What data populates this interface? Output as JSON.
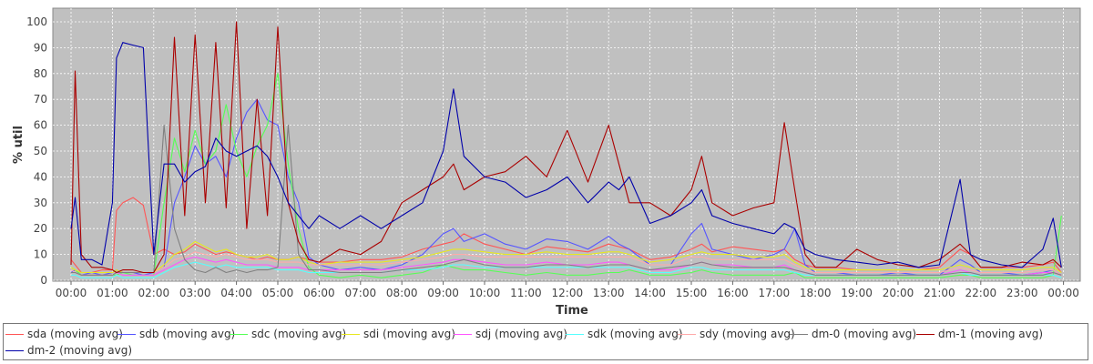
{
  "chart_data": {
    "type": "line",
    "title": "",
    "xlabel": "Time",
    "ylabel": "% util",
    "ylim": [
      0,
      100
    ],
    "y_ticks": [
      "0",
      "10",
      "20",
      "30",
      "40",
      "50",
      "60",
      "70",
      "80",
      "90",
      "100"
    ],
    "x_ticks": [
      "00:00",
      "01:00",
      "02:00",
      "03:00",
      "04:00",
      "05:00",
      "06:00",
      "07:00",
      "08:00",
      "09:00",
      "10:00",
      "11:00",
      "12:00",
      "13:00",
      "14:00",
      "15:00",
      "16:00",
      "17:00",
      "18:00",
      "19:00",
      "20:00",
      "21:00",
      "22:00",
      "23:00",
      "00:00"
    ],
    "grid": true,
    "legend_position": "bottom",
    "plot_background": "#c0c0c0",
    "x_hours": [
      0.0,
      0.1,
      0.25,
      0.5,
      0.75,
      1.0,
      1.1,
      1.25,
      1.5,
      1.75,
      2.0,
      2.25,
      2.5,
      2.75,
      3.0,
      3.25,
      3.5,
      3.75,
      4.0,
      4.25,
      4.5,
      4.75,
      5.0,
      5.25,
      5.5,
      5.75,
      6.0,
      6.5,
      7.0,
      7.5,
      8.0,
      8.5,
      9.0,
      9.25,
      9.5,
      10.0,
      10.5,
      11.0,
      11.5,
      12.0,
      12.5,
      13.0,
      13.25,
      13.5,
      14.0,
      14.5,
      15.0,
      15.25,
      15.5,
      16.0,
      16.5,
      17.0,
      17.25,
      17.5,
      17.75,
      18.0,
      18.5,
      19.0,
      19.5,
      20.0,
      20.5,
      21.0,
      21.5,
      21.75,
      22.0,
      22.5,
      23.0,
      23.5,
      23.75,
      23.95
    ],
    "series": [
      {
        "name": "sda (moving avg)",
        "color": "#ff5555",
        "values": [
          8,
          6,
          3,
          3,
          4,
          4,
          27,
          30,
          32,
          29,
          10,
          12,
          10,
          11,
          14,
          12,
          10,
          11,
          10,
          9,
          8,
          9,
          8,
          8,
          9,
          8,
          7,
          7,
          8,
          8,
          9,
          12,
          14,
          15,
          18,
          14,
          12,
          10,
          13,
          12,
          11,
          14,
          13,
          12,
          8,
          9,
          12,
          14,
          11,
          13,
          12,
          11,
          12,
          8,
          6,
          5,
          5,
          4,
          4,
          4,
          4,
          5,
          12,
          10,
          5,
          5,
          5,
          6,
          7,
          3
        ]
      },
      {
        "name": "sdb (moving avg)",
        "color": "#5555ff",
        "values": [
          3,
          4,
          2,
          3,
          2,
          3,
          4,
          3,
          3,
          2,
          3,
          5,
          30,
          40,
          52,
          45,
          48,
          40,
          55,
          65,
          70,
          62,
          60,
          40,
          30,
          9,
          6,
          4,
          5,
          4,
          6,
          10,
          18,
          20,
          15,
          18,
          14,
          12,
          16,
          15,
          12,
          17,
          14,
          12,
          6,
          6,
          18,
          22,
          12,
          10,
          8,
          10,
          12,
          20,
          6,
          3,
          3,
          2,
          2,
          3,
          2,
          2,
          8,
          6,
          3,
          3,
          2,
          3,
          4,
          2
        ]
      },
      {
        "name": "sdc (moving avg)",
        "color": "#55ff55",
        "values": [
          5,
          4,
          2,
          2,
          2,
          2,
          2,
          3,
          2,
          2,
          2,
          30,
          55,
          42,
          58,
          45,
          50,
          68,
          50,
          40,
          52,
          60,
          80,
          45,
          20,
          5,
          2,
          1,
          2,
          1,
          2,
          3,
          6,
          5,
          4,
          4,
          3,
          2,
          3,
          2,
          2,
          3,
          3,
          4,
          2,
          2,
          3,
          4,
          3,
          2,
          2,
          2,
          2,
          3,
          1,
          1,
          1,
          1,
          1,
          1,
          1,
          1,
          2,
          2,
          1,
          1,
          1,
          1,
          2,
          25
        ]
      },
      {
        "name": "sdi (moving avg)",
        "color": "#e8e820",
        "values": [
          5,
          4,
          3,
          3,
          3,
          3,
          4,
          3,
          3,
          3,
          3,
          6,
          10,
          12,
          15,
          13,
          11,
          12,
          10,
          9,
          9,
          10,
          8,
          8,
          9,
          7,
          6,
          7,
          7,
          7,
          8,
          9,
          11,
          12,
          12,
          11,
          10,
          10,
          11,
          10,
          10,
          11,
          11,
          10,
          7,
          8,
          10,
          11,
          10,
          10,
          9,
          9,
          10,
          7,
          5,
          4,
          4,
          4,
          4,
          4,
          4,
          4,
          6,
          5,
          4,
          4,
          4,
          5,
          5,
          3
        ]
      },
      {
        "name": "sdj (moving avg)",
        "color": "#ff55ff",
        "values": [
          3,
          3,
          2,
          2,
          2,
          2,
          3,
          2,
          2,
          2,
          2,
          4,
          6,
          8,
          9,
          8,
          7,
          8,
          7,
          6,
          6,
          6,
          5,
          5,
          5,
          4,
          4,
          4,
          4,
          4,
          5,
          6,
          7,
          8,
          8,
          7,
          6,
          6,
          7,
          6,
          6,
          7,
          7,
          6,
          4,
          4,
          6,
          7,
          6,
          6,
          5,
          5,
          6,
          4,
          3,
          2,
          2,
          2,
          2,
          2,
          2,
          2,
          4,
          3,
          2,
          2,
          2,
          3,
          3,
          2
        ]
      },
      {
        "name": "sdk (moving avg)",
        "color": "#55ffff",
        "values": [
          2,
          2,
          1,
          1,
          1,
          1,
          2,
          1,
          1,
          1,
          1,
          3,
          5,
          6,
          7,
          6,
          5,
          6,
          5,
          5,
          5,
          5,
          4,
          4,
          4,
          3,
          3,
          3,
          3,
          3,
          4,
          4,
          5,
          6,
          6,
          5,
          5,
          5,
          5,
          5,
          5,
          5,
          5,
          5,
          3,
          3,
          5,
          5,
          4,
          4,
          4,
          4,
          4,
          3,
          2,
          2,
          2,
          2,
          2,
          2,
          2,
          2,
          3,
          2,
          2,
          2,
          2,
          2,
          2,
          1
        ]
      },
      {
        "name": "sdy (moving avg)",
        "color": "#ffaaaa",
        "values": [
          4,
          3,
          2,
          2,
          2,
          2,
          3,
          3,
          3,
          3,
          3,
          5,
          8,
          9,
          11,
          10,
          9,
          10,
          9,
          8,
          8,
          8,
          7,
          7,
          7,
          6,
          6,
          6,
          6,
          6,
          7,
          8,
          9,
          10,
          10,
          9,
          9,
          9,
          9,
          9,
          9,
          9,
          9,
          9,
          6,
          6,
          9,
          9,
          8,
          8,
          8,
          8,
          8,
          6,
          4,
          3,
          3,
          3,
          3,
          3,
          3,
          3,
          5,
          4,
          3,
          3,
          3,
          4,
          4,
          2
        ]
      },
      {
        "name": "dm-0 (moving avg)",
        "color": "#808080",
        "values": [
          3,
          3,
          2,
          2,
          2,
          2,
          3,
          3,
          3,
          3,
          3,
          60,
          20,
          8,
          4,
          3,
          5,
          3,
          4,
          3,
          4,
          4,
          5,
          60,
          10,
          4,
          4,
          3,
          3,
          3,
          4,
          5,
          6,
          7,
          8,
          6,
          5,
          5,
          6,
          6,
          5,
          6,
          6,
          6,
          4,
          5,
          6,
          7,
          6,
          5,
          5,
          5,
          5,
          4,
          3,
          2,
          2,
          2,
          2,
          2,
          2,
          2,
          3,
          3,
          2,
          2,
          2,
          2,
          3,
          2
        ]
      },
      {
        "name": "dm-1 (moving avg)",
        "color": "#aa0000",
        "values": [
          6,
          81,
          10,
          5,
          5,
          4,
          3,
          4,
          4,
          3,
          3,
          10,
          94,
          25,
          95,
          30,
          92,
          28,
          100,
          20,
          70,
          25,
          98,
          30,
          15,
          8,
          7,
          12,
          10,
          15,
          30,
          35,
          40,
          45,
          35,
          40,
          42,
          48,
          40,
          58,
          38,
          60,
          45,
          30,
          30,
          25,
          35,
          48,
          30,
          25,
          28,
          30,
          61,
          35,
          10,
          5,
          5,
          12,
          8,
          6,
          5,
          8,
          14,
          10,
          5,
          5,
          7,
          6,
          8,
          5
        ]
      },
      {
        "name": "dm-2 (moving avg)",
        "color": "#0000aa",
        "values": [
          20,
          32,
          8,
          8,
          6,
          30,
          86,
          92,
          91,
          90,
          10,
          45,
          45,
          38,
          42,
          44,
          55,
          50,
          48,
          50,
          52,
          48,
          40,
          30,
          25,
          20,
          25,
          20,
          25,
          20,
          25,
          30,
          50,
          74,
          48,
          40,
          38,
          32,
          35,
          40,
          30,
          38,
          35,
          40,
          22,
          25,
          30,
          35,
          25,
          22,
          20,
          18,
          22,
          20,
          12,
          10,
          8,
          7,
          6,
          7,
          5,
          6,
          39,
          10,
          8,
          6,
          5,
          12,
          24,
          5
        ]
      }
    ]
  }
}
